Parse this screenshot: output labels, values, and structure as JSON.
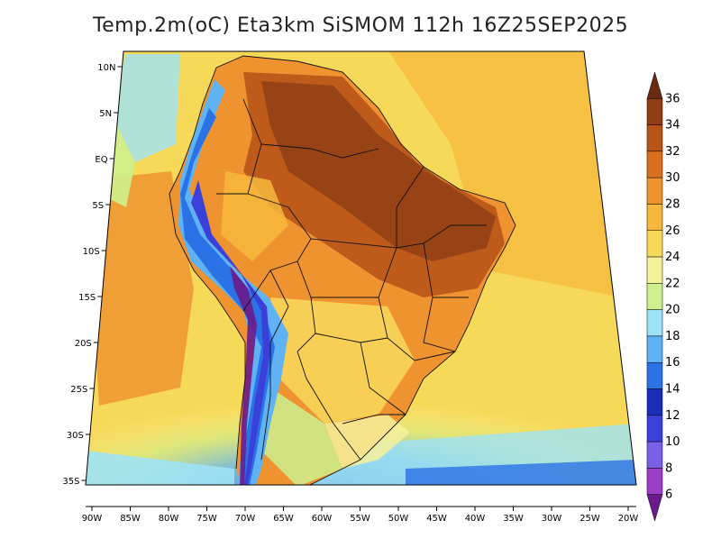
{
  "title": "Temp.2m(oC) Eta3km SiSMOM 112h 16Z25SEP2025",
  "lat_labels": [
    "10N",
    "5N",
    "EQ",
    "5S",
    "10S",
    "15S",
    "20S",
    "25S",
    "30S",
    "35S"
  ],
  "lon_labels": [
    "90W",
    "85W",
    "80W",
    "75W",
    "70W",
    "65W",
    "60W",
    "55W",
    "50W",
    "45W",
    "40W",
    "35W",
    "30W",
    "25W",
    "20W"
  ],
  "colorbar": {
    "labels": [
      "36",
      "34",
      "32",
      "30",
      "28",
      "26",
      "24",
      "22",
      "20",
      "18",
      "16",
      "14",
      "12",
      "10",
      "8",
      "6"
    ],
    "colors": [
      "#6b2a12",
      "#8f3d14",
      "#b85418",
      "#d9701e",
      "#ef9330",
      "#f6b83c",
      "#f7d95a",
      "#f7f09a",
      "#cdf08e",
      "#9ee2f5",
      "#5fb3f5",
      "#2a72e6",
      "#1a2fb8",
      "#3a40d8",
      "#7a60e8",
      "#9a3ec8",
      "#6a1a8a"
    ]
  }
}
